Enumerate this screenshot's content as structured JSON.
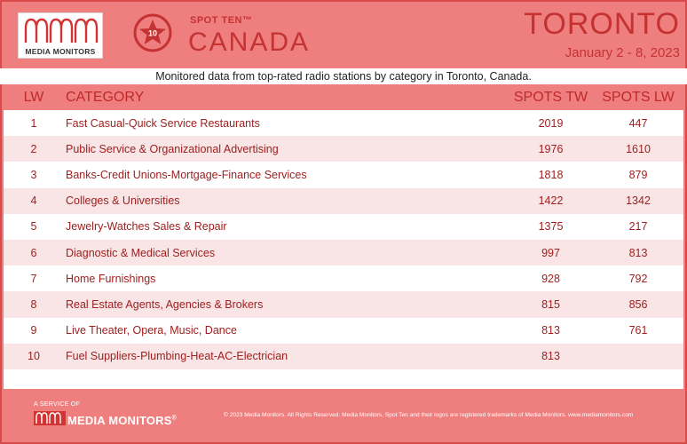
{
  "header": {
    "brand": "MEDIA MONITORS",
    "program": "SPOT TEN™",
    "badge_number": "10",
    "country": "CANADA",
    "city": "TORONTO",
    "dates": "January 2 - 8, 2023",
    "subtitle": "Monitored data from top-rated radio stations by category in Toronto, Canada."
  },
  "table": {
    "columns": {
      "lw": "LW",
      "category": "CATEGORY",
      "spots_tw": "SPOTS TW",
      "spots_lw": "SPOTS LW"
    },
    "rows": [
      {
        "lw": "1",
        "category": "Fast Casual-Quick Service Restaurants",
        "spots_tw": "2019",
        "spots_lw": "447"
      },
      {
        "lw": "2",
        "category": "Public Service & Organizational Advertising",
        "spots_tw": "1976",
        "spots_lw": "1610"
      },
      {
        "lw": "3",
        "category": "Banks-Credit Unions-Mortgage-Finance Services",
        "spots_tw": "1818",
        "spots_lw": "879"
      },
      {
        "lw": "4",
        "category": "Colleges & Universities",
        "spots_tw": "1422",
        "spots_lw": "1342"
      },
      {
        "lw": "5",
        "category": "Jewelry-Watches Sales & Repair",
        "spots_tw": "1375",
        "spots_lw": "217"
      },
      {
        "lw": "6",
        "category": "Diagnostic & Medical Services",
        "spots_tw": "997",
        "spots_lw": "813"
      },
      {
        "lw": "7",
        "category": "Home Furnishings",
        "spots_tw": "928",
        "spots_lw": "792"
      },
      {
        "lw": "8",
        "category": "Real Estate Agents, Agencies & Brokers",
        "spots_tw": "815",
        "spots_lw": "856"
      },
      {
        "lw": "9",
        "category": "Live Theater, Opera, Music, Dance",
        "spots_tw": "813",
        "spots_lw": "761"
      },
      {
        "lw": "10",
        "category": "Fuel Suppliers-Plumbing-Heat-AC-Electrician",
        "spots_tw": "813",
        "spots_lw": ""
      }
    ]
  },
  "footer": {
    "service_of": "A SERVICE OF",
    "brand": "MEDIA MONITORS",
    "registered_mark": "®",
    "copyright": "© 2023 Media Monitors. All Rights Reserved. Media Monitors, Spot Ten and their logos are registered trademarks of Media Monitors. www.mediamonitors.com"
  },
  "colors": {
    "background": "#ef7e7e",
    "accent": "#c43232",
    "row_alt": "#f9e5e5"
  },
  "icons": {
    "brand_logo": "media-monitors-wave-logo",
    "badge": "star-badge-icon"
  }
}
